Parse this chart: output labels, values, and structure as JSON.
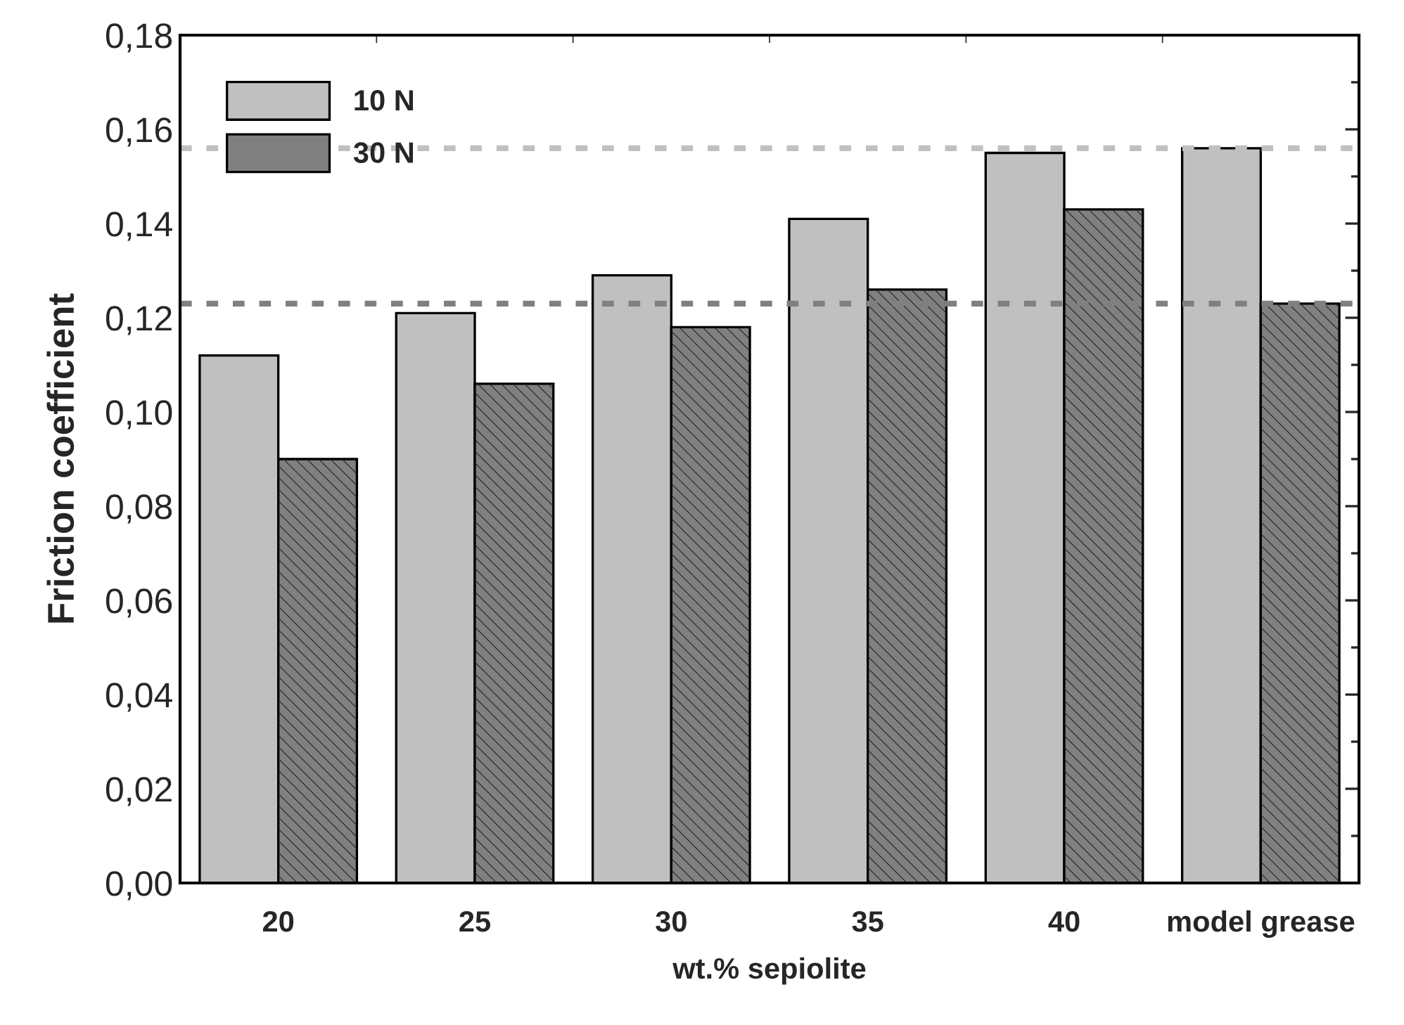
{
  "chart_data": {
    "type": "bar",
    "xlabel": "wt.% sepiolite",
    "ylabel": "Friction coefficient",
    "categories": [
      "20",
      "25",
      "30",
      "35",
      "40",
      "model grease"
    ],
    "series": [
      {
        "name": "10 N",
        "color": "#c0c0c0",
        "values": [
          0.112,
          0.121,
          0.129,
          0.141,
          0.155,
          0.156
        ]
      },
      {
        "name": "30 N",
        "color": "#808080",
        "values": [
          0.09,
          0.106,
          0.118,
          0.126,
          0.143,
          0.123
        ]
      }
    ],
    "ref_lines": [
      {
        "axis": "y",
        "value": 0.156,
        "color": "#c0c0c0",
        "line_style": "dotted"
      },
      {
        "axis": "y",
        "value": 0.123,
        "color": "#808080",
        "line_style": "dotted"
      }
    ],
    "ylim": [
      0,
      0.18
    ],
    "yticks": [
      {
        "value": 0,
        "label": "0,00"
      },
      {
        "value": 0.02,
        "label": "0,02"
      },
      {
        "value": 0.04,
        "label": "0,04"
      },
      {
        "value": 0.06,
        "label": "0,06"
      },
      {
        "value": 0.08,
        "label": "0,08"
      },
      {
        "value": 0.1,
        "label": "0,10"
      },
      {
        "value": 0.12,
        "label": "0,12"
      },
      {
        "value": 0.14,
        "label": "0,14"
      },
      {
        "value": 0.16,
        "label": "0,16"
      },
      {
        "value": 0.18,
        "label": "0,18"
      }
    ],
    "grid": false,
    "legend": "top left"
  }
}
